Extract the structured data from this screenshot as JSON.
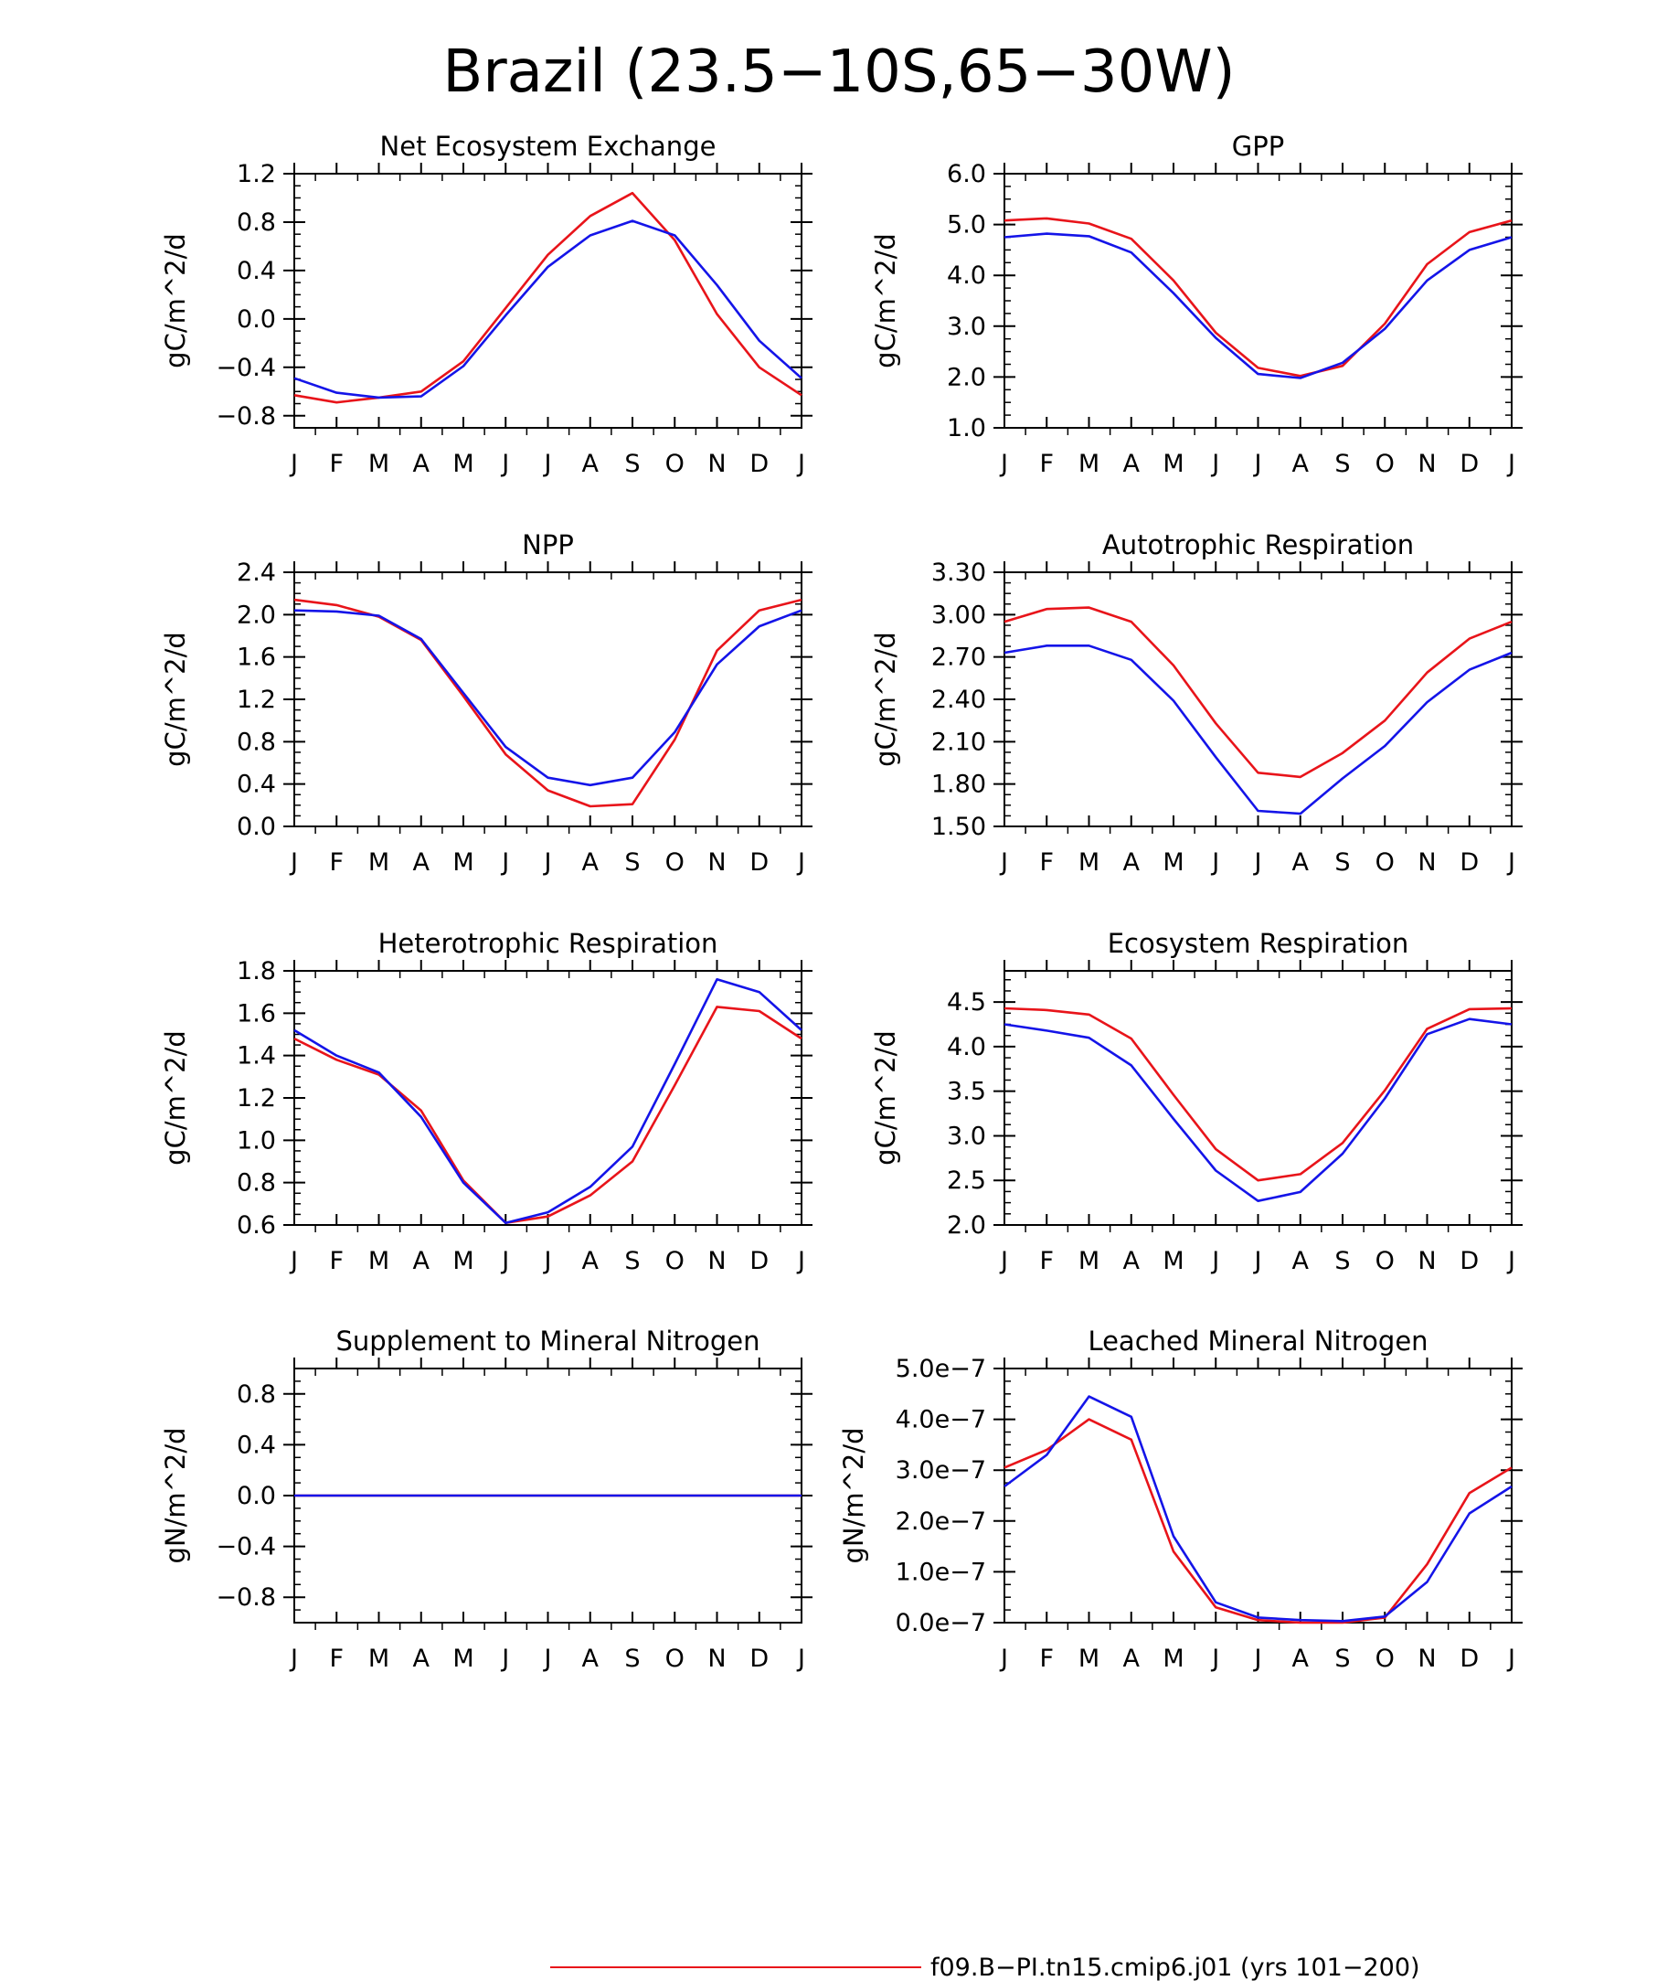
{
  "figure": {
    "title": "Brazil (23.5−10S,65−30W)",
    "legend": [
      {
        "label": "f09.B−PI.tn15.cmip6.j01 (yrs 101−200)",
        "color": "#e8141a"
      }
    ]
  },
  "colors": {
    "red": "#e8141a",
    "blue": "#1414e8"
  },
  "chart_data": [
    {
      "type": "line",
      "title": "Net Ecosystem Exchange",
      "ylabel": "gC/m^2/d",
      "categories": [
        "J",
        "F",
        "M",
        "A",
        "M",
        "J",
        "J",
        "A",
        "S",
        "O",
        "N",
        "D",
        "J"
      ],
      "ylim": [
        -0.9,
        1.2
      ],
      "yticks": [
        "-0.8",
        "-0.4",
        "0.0",
        "0.4",
        "0.8",
        "1.2"
      ],
      "series": [
        {
          "color": "#e8141a",
          "values": [
            -0.63,
            -0.69,
            -0.65,
            -0.6,
            -0.35,
            0.09,
            0.53,
            0.85,
            1.04,
            0.65,
            0.04,
            -0.4,
            -0.63
          ]
        },
        {
          "color": "#1414e8",
          "values": [
            -0.49,
            -0.61,
            -0.65,
            -0.64,
            -0.39,
            0.03,
            0.43,
            0.69,
            0.81,
            0.69,
            0.28,
            -0.18,
            -0.49
          ]
        }
      ]
    },
    {
      "type": "line",
      "title": "GPP",
      "ylabel": "gC/m^2/d",
      "categories": [
        "J",
        "F",
        "M",
        "A",
        "M",
        "J",
        "J",
        "A",
        "S",
        "O",
        "N",
        "D",
        "J"
      ],
      "ylim": [
        1.0,
        6.0
      ],
      "yticks": [
        "1.0",
        "2.0",
        "3.0",
        "4.0",
        "5.0",
        "6.0"
      ],
      "series": [
        {
          "color": "#e8141a",
          "values": [
            5.08,
            5.12,
            5.02,
            4.72,
            3.9,
            2.87,
            2.18,
            2.02,
            2.22,
            3.05,
            4.22,
            4.85,
            5.08
          ]
        },
        {
          "color": "#1414e8",
          "values": [
            4.75,
            4.82,
            4.77,
            4.45,
            3.65,
            2.77,
            2.06,
            1.98,
            2.28,
            2.95,
            3.9,
            4.5,
            4.75
          ]
        }
      ]
    },
    {
      "type": "line",
      "title": "NPP",
      "ylabel": "gC/m^2/d",
      "categories": [
        "J",
        "F",
        "M",
        "A",
        "M",
        "J",
        "J",
        "A",
        "S",
        "O",
        "N",
        "D",
        "J"
      ],
      "ylim": [
        0.0,
        2.4
      ],
      "yticks": [
        "0.0",
        "0.4",
        "0.8",
        "1.2",
        "1.6",
        "2.0",
        "2.4"
      ],
      "series": [
        {
          "color": "#e8141a",
          "values": [
            2.14,
            2.09,
            1.98,
            1.76,
            1.23,
            0.68,
            0.34,
            0.19,
            0.21,
            0.82,
            1.66,
            2.04,
            2.14
          ]
        },
        {
          "color": "#1414e8",
          "values": [
            2.04,
            2.03,
            1.99,
            1.77,
            1.26,
            0.75,
            0.46,
            0.39,
            0.46,
            0.89,
            1.53,
            1.89,
            2.04
          ]
        }
      ]
    },
    {
      "type": "line",
      "title": "Autotrophic Respiration",
      "ylabel": "gC/m^2/d",
      "categories": [
        "J",
        "F",
        "M",
        "A",
        "M",
        "J",
        "J",
        "A",
        "S",
        "O",
        "N",
        "D",
        "J"
      ],
      "ylim": [
        1.5,
        3.3
      ],
      "yticks": [
        "1.50",
        "1.80",
        "2.10",
        "2.40",
        "2.70",
        "3.00",
        "3.30"
      ],
      "series": [
        {
          "color": "#e8141a",
          "values": [
            2.95,
            3.04,
            3.05,
            2.95,
            2.64,
            2.23,
            1.88,
            1.85,
            2.02,
            2.25,
            2.59,
            2.83,
            2.95
          ]
        },
        {
          "color": "#1414e8",
          "values": [
            2.73,
            2.78,
            2.78,
            2.68,
            2.39,
            1.99,
            1.61,
            1.59,
            1.84,
            2.07,
            2.38,
            2.61,
            2.73
          ]
        }
      ]
    },
    {
      "type": "line",
      "title": "Heterotrophic Respiration",
      "ylabel": "gC/m^2/d",
      "categories": [
        "J",
        "F",
        "M",
        "A",
        "M",
        "J",
        "J",
        "A",
        "S",
        "O",
        "N",
        "D",
        "J"
      ],
      "ylim": [
        0.6,
        1.8
      ],
      "yticks": [
        "0.6",
        "0.8",
        "1.0",
        "1.2",
        "1.4",
        "1.6",
        "1.8"
      ],
      "series": [
        {
          "color": "#e8141a",
          "values": [
            1.48,
            1.38,
            1.31,
            1.14,
            0.81,
            0.61,
            0.64,
            0.74,
            0.9,
            1.26,
            1.63,
            1.61,
            1.48
          ]
        },
        {
          "color": "#1414e8",
          "values": [
            1.52,
            1.4,
            1.32,
            1.11,
            0.8,
            0.61,
            0.66,
            0.78,
            0.97,
            1.36,
            1.76,
            1.7,
            1.52
          ]
        }
      ]
    },
    {
      "type": "line",
      "title": "Ecosystem Respiration",
      "ylabel": "gC/m^2/d",
      "categories": [
        "J",
        "F",
        "M",
        "A",
        "M",
        "J",
        "J",
        "A",
        "S",
        "O",
        "N",
        "D",
        "J"
      ],
      "ylim": [
        2.0,
        4.85
      ],
      "yticks": [
        "2.0",
        "2.5",
        "3.0",
        "3.5",
        "4.0",
        "4.5"
      ],
      "series": [
        {
          "color": "#e8141a",
          "values": [
            4.43,
            4.41,
            4.36,
            4.09,
            3.46,
            2.85,
            2.5,
            2.57,
            2.92,
            3.51,
            4.2,
            4.42,
            4.43
          ]
        },
        {
          "color": "#1414e8",
          "values": [
            4.25,
            4.18,
            4.1,
            3.79,
            3.19,
            2.61,
            2.27,
            2.37,
            2.8,
            3.42,
            4.14,
            4.31,
            4.25
          ]
        }
      ]
    },
    {
      "type": "line",
      "title": "Supplement to Mineral Nitrogen",
      "ylabel": "gN/m^2/d",
      "categories": [
        "J",
        "F",
        "M",
        "A",
        "M",
        "J",
        "J",
        "A",
        "S",
        "O",
        "N",
        "D",
        "J"
      ],
      "ylim": [
        -1.0,
        1.0
      ],
      "yticks": [
        "-0.8",
        "-0.4",
        "0.0",
        "0.4",
        "0.8"
      ],
      "series": [
        {
          "color": "#e8141a",
          "values": [
            0,
            0,
            0,
            0,
            0,
            0,
            0,
            0,
            0,
            0,
            0,
            0,
            0
          ]
        },
        {
          "color": "#1414e8",
          "values": [
            0,
            0,
            0,
            0,
            0,
            0,
            0,
            0,
            0,
            0,
            0,
            0,
            0
          ]
        }
      ]
    },
    {
      "type": "line",
      "title": "Leached Mineral Nitrogen",
      "ylabel": "gN/m^2/d",
      "categories": [
        "J",
        "F",
        "M",
        "A",
        "M",
        "J",
        "J",
        "A",
        "S",
        "O",
        "N",
        "D",
        "J"
      ],
      "ylim": [
        0.0,
        5e-07
      ],
      "yticks": [
        "0.0e−7",
        "1.0e−7",
        "2.0e−7",
        "3.0e−7",
        "4.0e−7",
        "5.0e−7"
      ],
      "series": [
        {
          "color": "#e8141a",
          "values": [
            3.05e-07,
            3.4e-07,
            4e-07,
            3.6e-07,
            1.4e-07,
            3e-08,
            5e-09,
            0.0,
            0.0,
            1e-08,
            1.15e-07,
            2.55e-07,
            3.05e-07
          ]
        },
        {
          "color": "#1414e8",
          "values": [
            2.68e-07,
            3.3e-07,
            4.45e-07,
            4.05e-07,
            1.7e-07,
            4e-08,
            1e-08,
            5e-09,
            3e-09,
            1.2e-08,
            8e-08,
            2.15e-07,
            2.68e-07
          ]
        }
      ]
    }
  ]
}
